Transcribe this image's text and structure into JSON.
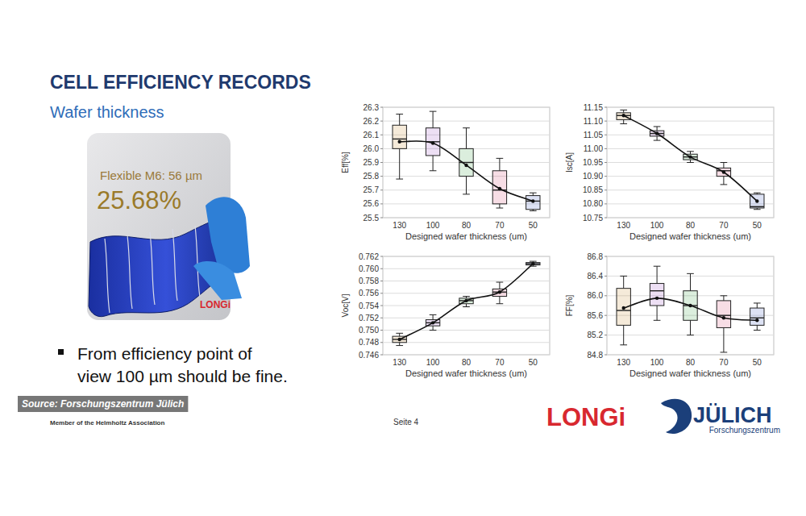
{
  "slide": {
    "title": "CELL EFFICIENCY RECORDS",
    "subtitle": "Wafer thickness",
    "image": {
      "caption": "Flexible M6: 56 µm",
      "value": "25.68%",
      "brand": "LONGi"
    },
    "bullet": [
      "From efficiency point of",
      "view 100 µm should be fine."
    ],
    "source": "Source: Forschungszentrum Jülich",
    "footer": "Member of the Helmholtz Association",
    "page": "Seite 4",
    "logos": {
      "longi": "LONGi",
      "julich": "JÜLICH",
      "julich_sub": "Forschungszentrum"
    }
  },
  "chart_data": [
    {
      "type": "box",
      "y_label": "Eff[%]",
      "x_label": "Designed wafer thickness (um)",
      "categories": [
        "130",
        "100",
        "80",
        "70",
        "50"
      ],
      "colors": [
        "#c98a2a",
        "#9a4fc0",
        "#3aa040",
        "#d04070",
        "#4060c0"
      ],
      "whisker_low": [
        25.78,
        25.84,
        25.67,
        25.57,
        25.55
      ],
      "q1": [
        26.0,
        25.95,
        25.8,
        25.6,
        25.56
      ],
      "median": [
        26.07,
        26.05,
        25.9,
        25.7,
        25.62
      ],
      "q3": [
        26.17,
        26.15,
        26.0,
        25.84,
        25.66
      ],
      "whisker_high": [
        26.25,
        26.27,
        26.15,
        25.93,
        25.68
      ],
      "mean": [
        26.05,
        26.04,
        25.88,
        25.71,
        25.62
      ],
      "ylim": [
        25.5,
        26.3
      ],
      "yticks": [
        25.5,
        25.6,
        25.7,
        25.8,
        25.9,
        {
          "value": 26,
          "label": "26.0"
        },
        26.1,
        26.2,
        26.3
      ],
      "grid": true
    },
    {
      "type": "box",
      "y_label": "Isc[A]",
      "x_label": "Designed wafer thickness (um)",
      "categories": [
        "130",
        "100",
        "80",
        "70",
        "50"
      ],
      "colors": [
        "#c98a2a",
        "#9a4fc0",
        "#3aa040",
        "#d04070",
        "#4060c0"
      ],
      "whisker_low": [
        11.09,
        11.03,
        10.95,
        10.87,
        10.78
      ],
      "q1": [
        11.105,
        11.045,
        10.96,
        10.9,
        10.785
      ],
      "median": [
        11.12,
        11.055,
        10.97,
        10.92,
        10.79
      ],
      "q3": [
        11.13,
        11.065,
        10.98,
        10.93,
        10.835
      ],
      "whisker_high": [
        11.14,
        11.08,
        10.99,
        10.95,
        10.84
      ],
      "mean": [
        11.12,
        11.055,
        10.97,
        10.915,
        10.81
      ],
      "ylim": [
        10.75,
        11.15
      ],
      "yticks": [
        10.75,
        {
          "value": 10.8,
          "label": "10.80"
        },
        10.85,
        {
          "value": 10.9,
          "label": "10.90"
        },
        10.95,
        {
          "value": 11,
          "label": "11.00"
        },
        11.05,
        {
          "value": 11.1,
          "label": "11.10"
        },
        11.15
      ],
      "grid": true
    },
    {
      "type": "box",
      "y_label": "Voc[V]",
      "x_label": "Designed wafer thickness (um)",
      "categories": [
        "130",
        "100",
        "80",
        "70",
        "50"
      ],
      "colors": [
        "#c98a2a",
        "#9a4fc0",
        "#3aa040",
        "#d04070",
        "#4060c0"
      ],
      "whisker_low": [
        0.7475,
        0.75,
        0.7538,
        0.7543,
        0.7604
      ],
      "q1": [
        0.748,
        0.7507,
        0.7543,
        0.7555,
        0.7606
      ],
      "median": [
        0.7485,
        0.7512,
        0.7548,
        0.7562,
        0.7608
      ],
      "q3": [
        0.749,
        0.7517,
        0.7552,
        0.7567,
        0.761
      ],
      "whisker_high": [
        0.7495,
        0.7525,
        0.7555,
        0.7578,
        0.7612
      ],
      "mean": [
        0.7485,
        0.7512,
        0.7548,
        0.7562,
        0.7608
      ],
      "ylim": [
        0.746,
        0.762
      ],
      "yticks": [
        0.746,
        0.748,
        {
          "value": 0.75,
          "label": "0.750"
        },
        0.752,
        0.754,
        0.756,
        0.758,
        {
          "value": 0.76,
          "label": "0.760"
        },
        0.762
      ],
      "grid": true
    },
    {
      "type": "box",
      "y_label": "FF[%]",
      "x_label": "Designed wafer thickness (um)",
      "categories": [
        "130",
        "100",
        "80",
        "70",
        "50"
      ],
      "colors": [
        "#c98a2a",
        "#9a4fc0",
        "#3aa040",
        "#d04070",
        "#4060c0"
      ],
      "whisker_low": [
        85.0,
        85.5,
        85.2,
        84.85,
        85.3
      ],
      "q1": [
        85.4,
        85.8,
        85.5,
        85.35,
        85.4
      ],
      "median": [
        85.7,
        86.1,
        85.8,
        85.6,
        85.55
      ],
      "q3": [
        86.15,
        86.25,
        86.1,
        85.9,
        85.75
      ],
      "whisker_high": [
        86.4,
        86.6,
        86.45,
        86.0,
        85.85
      ],
      "mean": [
        85.75,
        85.95,
        85.8,
        85.55,
        85.5
      ],
      "ylim": [
        84.8,
        86.8
      ],
      "yticks": [
        84.8,
        85.2,
        85.6,
        {
          "value": 86,
          "label": "86.0"
        },
        86.4,
        86.8
      ],
      "grid": true
    }
  ]
}
